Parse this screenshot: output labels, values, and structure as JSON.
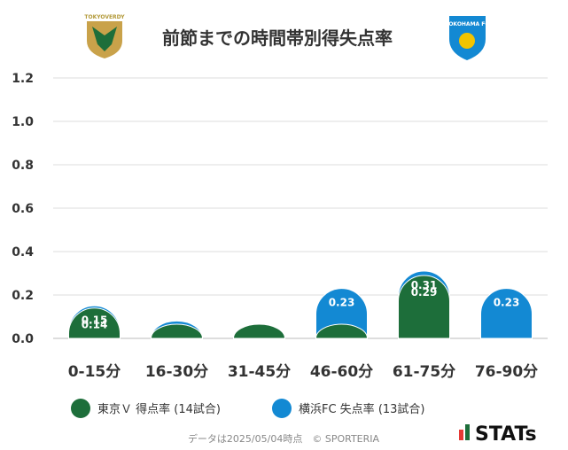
{
  "header": {
    "title": "前節までの時間帯別得失点率",
    "home_logo_text": "TOKYOVERDY",
    "away_logo_text": "YOKOHAMA FC"
  },
  "colors": {
    "home": "#1d6e3a",
    "away": "#1389d3",
    "grid": "#dddddd",
    "axis": "#bbbbbb"
  },
  "chart_data": {
    "type": "bar",
    "categories": [
      "0-15分",
      "16-30分",
      "31-45分",
      "46-60分",
      "61-75分",
      "76-90分"
    ],
    "series": [
      {
        "name": "東京Ｖ 得点率 (14試合)",
        "values": [
          0.14,
          0.0,
          0.0,
          0.0,
          0.29,
          0.0
        ],
        "labels": [
          "0.14",
          "",
          "",
          "",
          "0.29",
          ""
        ]
      },
      {
        "name": "横浜FC 失点率 (13試合)",
        "values": [
          0.15,
          0.08,
          0.0,
          0.23,
          0.31,
          0.23
        ],
        "labels": [
          "0.15",
          "",
          "",
          "0.23",
          "0.31",
          "0.23"
        ]
      }
    ],
    "ylim": [
      0,
      1.2
    ],
    "yticks": [
      "0.0",
      "0.2",
      "0.4",
      "0.6",
      "0.8",
      "1.0",
      "1.2"
    ],
    "grid": true,
    "legend_position": "bottom"
  },
  "footer": {
    "note": "データは2025/05/04時点　© SPORTERIA",
    "brand": "STATs"
  }
}
